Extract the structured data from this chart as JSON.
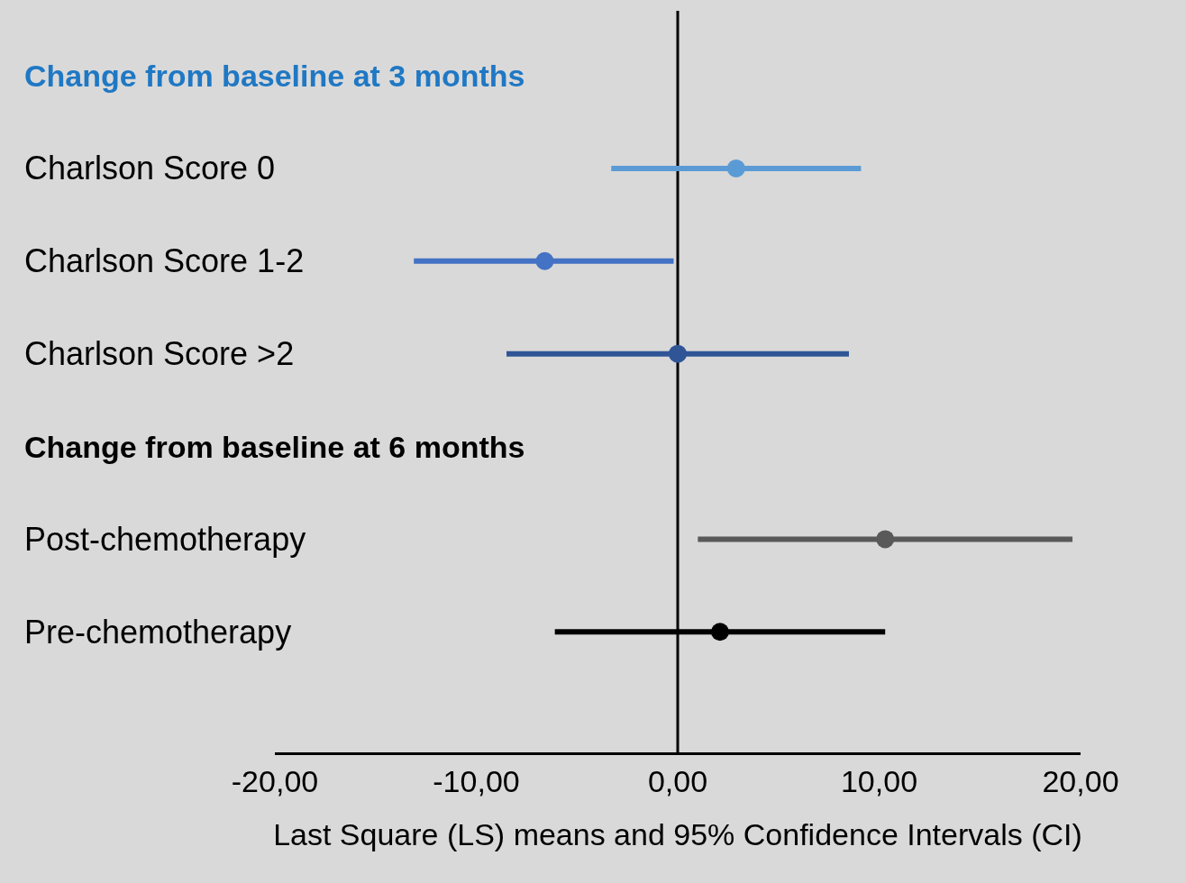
{
  "chart_data": {
    "type": "scatter",
    "orientation": "horizontal",
    "categories": [
      "Change from baseline at 3 months",
      "Charlson Score 0",
      "Charlson Score 1-2",
      "Charlson Score >2",
      "Change from baseline at 6 months",
      "Post-chemotherapy",
      "Pre-chemotherapy"
    ],
    "values": [
      null,
      2.9,
      -6.6,
      0.0,
      null,
      10.3,
      2.1
    ],
    "errors": [
      null,
      [
        -3.3,
        9.1
      ],
      [
        -13.1,
        -0.2
      ],
      [
        -8.5,
        8.5
      ],
      null,
      [
        1.0,
        19.6
      ],
      [
        -6.1,
        10.3
      ]
    ],
    "colors": [
      "#1f78c4",
      "#5b9bd5",
      "#4472c4",
      "#2f5597",
      "#000000",
      "#595959",
      "#000000"
    ],
    "xlim": [
      -20,
      20
    ],
    "xticks": [
      {
        "value": -20,
        "label": "-20,00"
      },
      {
        "value": -10,
        "label": "-10,00"
      },
      {
        "value": 0,
        "label": "0,00"
      },
      {
        "value": 10,
        "label": "10,00"
      },
      {
        "value": 20,
        "label": "20,00"
      }
    ],
    "xlabel": "Last Square (LS) means and 95% Confidence Intervals (CI)",
    "ref_lines": [
      {
        "axis": "x",
        "value": 0,
        "color": "#000000"
      }
    ],
    "marker": "circle",
    "grid": false
  }
}
